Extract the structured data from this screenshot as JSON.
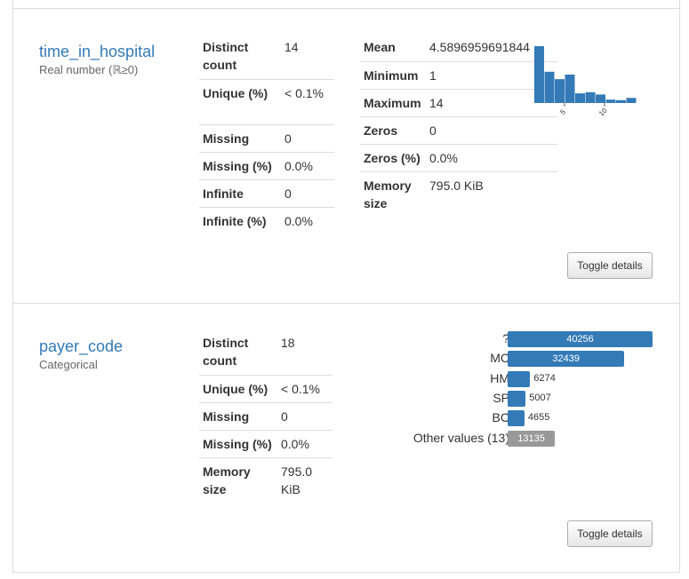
{
  "variables": [
    {
      "name": "time_in_hospital",
      "type_label": "Real number (ℝ≥0)",
      "stats_left": [
        {
          "k": "Distinct count",
          "v": "14"
        },
        {
          "k": "Unique (%)",
          "v": "< 0.1%"
        },
        {
          "k": "Missing",
          "v": "0"
        },
        {
          "k": "Missing (%)",
          "v": "0.0%"
        },
        {
          "k": "Infinite",
          "v": "0"
        },
        {
          "k": "Infinite (%)",
          "v": "0.0%"
        }
      ],
      "stats_right": [
        {
          "k": "Mean",
          "v": "4.5896959691844"
        },
        {
          "k": "Minimum",
          "v": "1"
        },
        {
          "k": "Maximum",
          "v": "14"
        },
        {
          "k": "Zeros",
          "v": "0"
        },
        {
          "k": "Zeros (%)",
          "v": "0.0%"
        },
        {
          "k": "Memory size",
          "v": "795.0 KiB"
        }
      ],
      "histogram": {
        "bar_heights_relative": [
          1.0,
          0.55,
          0.42,
          0.5,
          0.17,
          0.19,
          0.15,
          0.06,
          0.05,
          0.09
        ],
        "tick_labels": [
          "5",
          "10"
        ],
        "color": "#337ab7"
      },
      "toggle_label": "Toggle details"
    },
    {
      "name": "payer_code",
      "type_label": "Categorical",
      "stats_left": [
        {
          "k": "Distinct count",
          "v": "18"
        },
        {
          "k": "Unique (%)",
          "v": "< 0.1%"
        },
        {
          "k": "Missing",
          "v": "0"
        },
        {
          "k": "Missing (%)",
          "v": "0.0%"
        },
        {
          "k": "Memory size",
          "v": "795.0 KiB"
        }
      ],
      "frequencies": [
        {
          "label": "?",
          "count": 40256,
          "display": "40256",
          "other": false
        },
        {
          "label": "MC",
          "count": 32439,
          "display": "32439",
          "other": false
        },
        {
          "label": "HM",
          "count": 6274,
          "display": "6274",
          "other": false
        },
        {
          "label": "SP",
          "count": 5007,
          "display": "5007",
          "other": false
        },
        {
          "label": "BC",
          "count": 4655,
          "display": "4655",
          "other": false
        },
        {
          "label": "Other values (13)",
          "count": 13135,
          "display": "13135",
          "other": true
        }
      ],
      "toggle_label": "Toggle details"
    }
  ],
  "colors": {
    "accent": "#337ab7",
    "other_bar": "#999999",
    "border": "#dddddd"
  }
}
